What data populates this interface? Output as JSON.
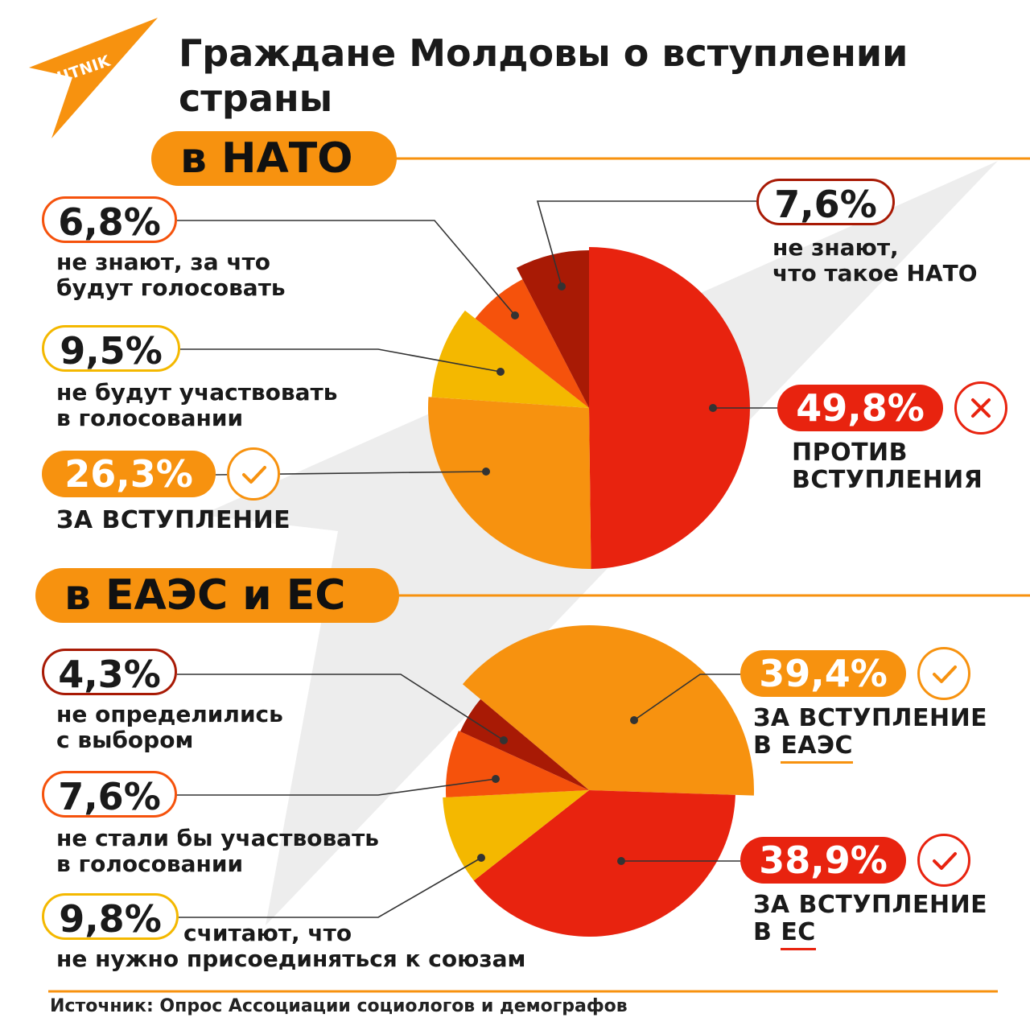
{
  "title": "Граждане Молдовы о вступлении страны",
  "logo": {
    "text": "SPUTNIK",
    "color": "#f7920f"
  },
  "colors": {
    "orange": "#f7920f",
    "red": "#e8230f",
    "dark_red": "#a81a05",
    "red_orange": "#f5520c",
    "yellow": "#f4b800"
  },
  "nato": {
    "heading": "в НАТО",
    "items": [
      {
        "value": "6,8%",
        "label": [
          "не знают, за что",
          "будут голосовать"
        ]
      },
      {
        "value": "9,5%",
        "label": [
          "не будут участвовать",
          "в голосовании"
        ]
      },
      {
        "value": "26,3%",
        "label": [
          "ЗА ВСТУПЛЕНИЕ"
        ],
        "icon": "check-icon"
      },
      {
        "value": "7,6%",
        "label": [
          "не знают,",
          "что такое НАТО"
        ]
      },
      {
        "value": "49,8%",
        "label": [
          "ПРОТИВ",
          "ВСТУПЛЕНИЯ"
        ],
        "icon": "cross-icon"
      }
    ]
  },
  "eaeu": {
    "heading": "в ЕАЭС и ЕС",
    "items": [
      {
        "value": "4,3%",
        "label": [
          "не определились",
          "с выбором"
        ]
      },
      {
        "value": "7,6%",
        "label": [
          "не стали бы участвовать",
          "в голосовании"
        ]
      },
      {
        "value": "9,8%",
        "label": [
          "считают, что",
          "не нужно присоединяться к союзам"
        ]
      },
      {
        "value": "39,4%",
        "label": [
          "ЗА ВСТУПЛЕНИЕ",
          "В ",
          "ЕАЭС"
        ],
        "icon": "check-icon"
      },
      {
        "value": "38,9%",
        "label": [
          "ЗА ВСТУПЛЕНИЕ",
          "В ",
          "ЕС"
        ],
        "icon": "check-icon"
      }
    ]
  },
  "source": "Источник: Опрос Ассоциации социологов и демографов",
  "chart_data": [
    {
      "type": "pie",
      "title": "в НАТО",
      "slices": [
        {
          "name": "ПРОТИВ ВСТУПЛЕНИЯ",
          "value": 49.8,
          "color": "#e8230f"
        },
        {
          "name": "ЗА ВСТУПЛЕНИЕ",
          "value": 26.3,
          "color": "#f7920f"
        },
        {
          "name": "не будут участвовать в голосовании",
          "value": 9.5,
          "color": "#f4b800"
        },
        {
          "name": "не знают, за что будут голосовать",
          "value": 6.8,
          "color": "#f5520c"
        },
        {
          "name": "не знают, что такое НАТО",
          "value": 7.6,
          "color": "#a81a05"
        }
      ]
    },
    {
      "type": "pie",
      "title": "в ЕАЭС и ЕС",
      "slices": [
        {
          "name": "ЗА ВСТУПЛЕНИЕ В ЕАЭС",
          "value": 39.4,
          "color": "#f7920f"
        },
        {
          "name": "ЗА ВСТУПЛЕНИЕ В ЕС",
          "value": 38.9,
          "color": "#e8230f"
        },
        {
          "name": "считают, что не нужно присоединяться к союзам",
          "value": 9.8,
          "color": "#f4b800"
        },
        {
          "name": "не стали бы участвовать в голосовании",
          "value": 7.6,
          "color": "#f5520c"
        },
        {
          "name": "не определились с выбором",
          "value": 4.3,
          "color": "#a81a05"
        }
      ]
    }
  ]
}
